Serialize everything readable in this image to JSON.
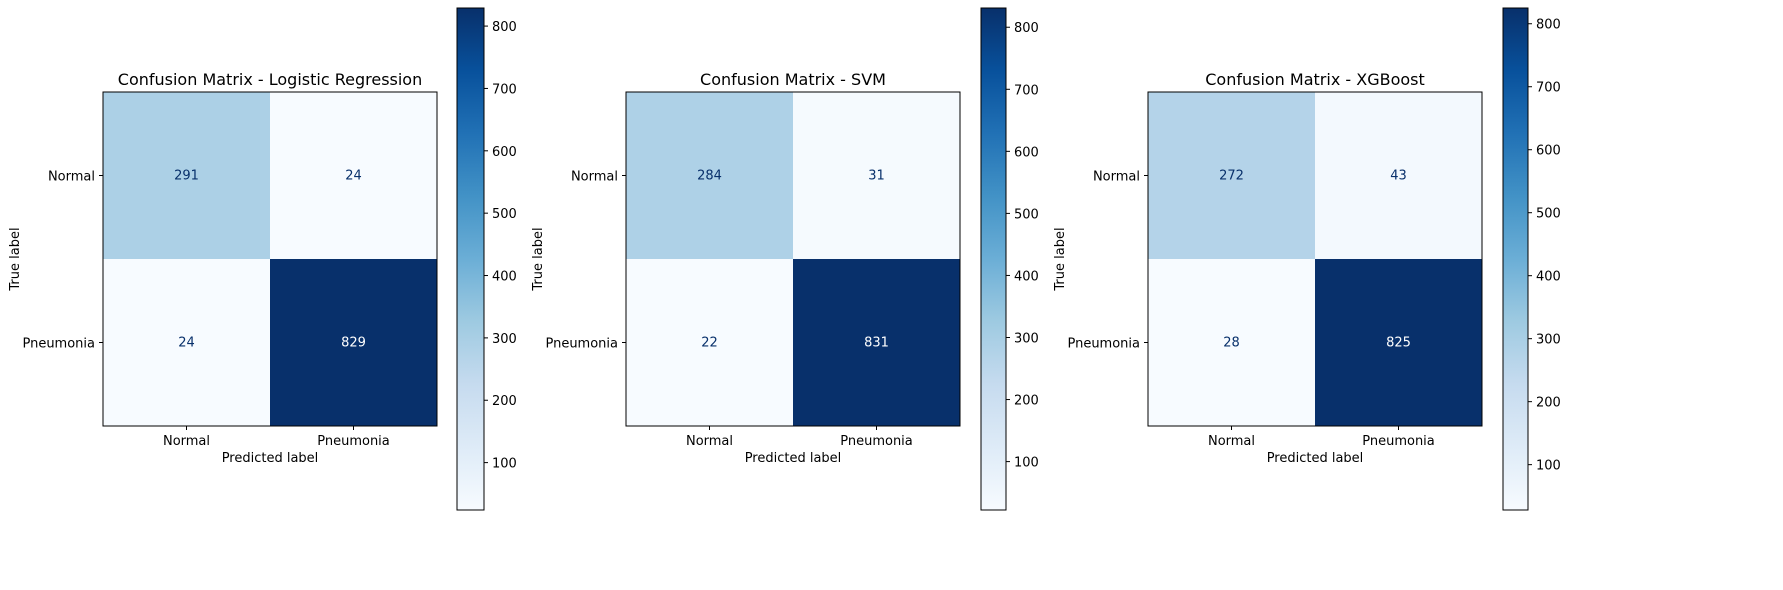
{
  "chart_data": [
    {
      "type": "heatmap",
      "title": "Confusion Matrix - Logistic Regression",
      "xlabel": "Predicted label",
      "ylabel": "True label",
      "x_categories": [
        "Normal",
        "Pneumonia"
      ],
      "y_categories": [
        "Normal",
        "Pneumonia"
      ],
      "values": [
        [
          291,
          24
        ],
        [
          24,
          829
        ]
      ],
      "colormap": "Blues",
      "colorbar": {
        "min": 24,
        "max": 829,
        "ticks": [
          100,
          200,
          300,
          400,
          500,
          600,
          700,
          800
        ]
      }
    },
    {
      "type": "heatmap",
      "title": "Confusion Matrix - SVM",
      "xlabel": "Predicted label",
      "ylabel": "True label",
      "x_categories": [
        "Normal",
        "Pneumonia"
      ],
      "y_categories": [
        "Normal",
        "Pneumonia"
      ],
      "values": [
        [
          284,
          31
        ],
        [
          22,
          831
        ]
      ],
      "colormap": "Blues",
      "colorbar": {
        "min": 22,
        "max": 831,
        "ticks": [
          100,
          200,
          300,
          400,
          500,
          600,
          700,
          800
        ]
      }
    },
    {
      "type": "heatmap",
      "title": "Confusion Matrix - XGBoost",
      "xlabel": "Predicted label",
      "ylabel": "True label",
      "x_categories": [
        "Normal",
        "Pneumonia"
      ],
      "y_categories": [
        "Normal",
        "Pneumonia"
      ],
      "values": [
        [
          272,
          43
        ],
        [
          28,
          825
        ]
      ],
      "colormap": "Blues",
      "colorbar": {
        "min": 28,
        "max": 825,
        "ticks": [
          100,
          200,
          300,
          400,
          500,
          600,
          700,
          800
        ]
      }
    }
  ],
  "colors": {
    "text_dark": "#08306b",
    "text_light": "#ffffff",
    "axes": "#000000"
  }
}
